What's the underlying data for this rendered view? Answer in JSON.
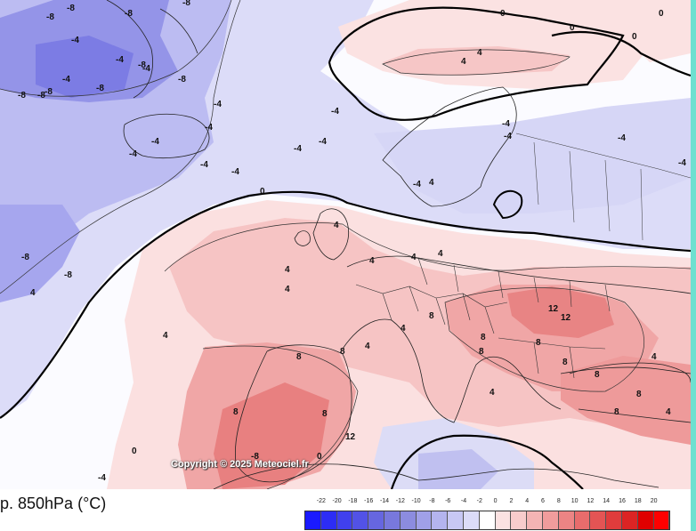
{
  "caption": "p. 850hPa (°C)",
  "copyright": "Copyright © 2025 Meteociel.fr",
  "legend": {
    "ticks": [
      "-22",
      "-20",
      "-18",
      "-16",
      "-14",
      "-12",
      "-10",
      "-8",
      "-6",
      "-4",
      "-2",
      "0",
      "2",
      "4",
      "6",
      "8",
      "10",
      "12",
      "14",
      "16",
      "18",
      "20"
    ],
    "colors": [
      "#1a1aff",
      "#2d2df5",
      "#4040ee",
      "#5252e6",
      "#6666e0",
      "#7878dd",
      "#8c8cdf",
      "#a0a0e8",
      "#b4b4ee",
      "#c8c8f4",
      "#dcdcf8",
      "#ffffff",
      "#fbe2e2",
      "#f8cccc",
      "#f4b4b4",
      "#f09c9c",
      "#ec8484",
      "#e86c6c",
      "#e45454",
      "#e03c3c",
      "#dc2424",
      "#e00000",
      "#ff0000"
    ]
  },
  "map": {
    "contour_labels": [
      "-8",
      "-8",
      "-8",
      "-8",
      "-4",
      "-4",
      "-4",
      "-8",
      "-8",
      "-4",
      "-8",
      "-8",
      "-8",
      "-8",
      "-4",
      "-4",
      "-4",
      "-4",
      "-4",
      "-4",
      "-4",
      "-4",
      "-4",
      "0",
      "0",
      "0",
      "0",
      "0",
      "4",
      "4",
      "4",
      "4",
      "4",
      "4",
      "4",
      "4",
      "4",
      "4",
      "4",
      "4",
      "8",
      "8",
      "8",
      "8",
      "8",
      "8",
      "8",
      "8",
      "8",
      "12",
      "12",
      "12",
      "-8",
      "-8",
      "-8",
      "4",
      "4",
      "0",
      "0",
      "-4",
      "-4",
      "-4",
      "-4",
      "-4",
      "-4",
      "4",
      "8",
      "8",
      "8",
      "4"
    ],
    "colors": {
      "deep_blue": "#8080e8",
      "mid_blue": "#a6a6ee",
      "light_blue": "#c8c8f4",
      "very_light_blue": "#e2e2fa",
      "white": "#fbfbff",
      "light_pink": "#fbe0e0",
      "pink": "#f6c4c4",
      "salmon": "#f0a6a6",
      "red": "#ea8a8a",
      "deep_red": "#e06a6a"
    }
  }
}
